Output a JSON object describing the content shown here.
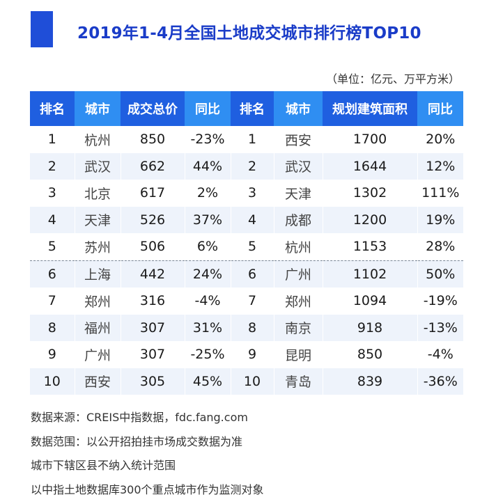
{
  "title": "2019年1-4月全国土地成交城市排行榜TOP10",
  "unit": "（单位：亿元、万平方米）",
  "chart_data": {
    "type": "table",
    "headers": [
      "排名",
      "城市",
      "成交总价",
      "同比",
      "排名",
      "城市",
      "规划建筑面积",
      "同比"
    ],
    "rows": [
      [
        "1",
        "杭州",
        "850",
        "-23%",
        "1",
        "西安",
        "1700",
        "20%"
      ],
      [
        "2",
        "武汉",
        "662",
        "44%",
        "2",
        "武汉",
        "1644",
        "12%"
      ],
      [
        "3",
        "北京",
        "617",
        "2%",
        "3",
        "天津",
        "1302",
        "111%"
      ],
      [
        "4",
        "天津",
        "526",
        "37%",
        "4",
        "成都",
        "1200",
        "19%"
      ],
      [
        "5",
        "苏州",
        "506",
        "6%",
        "5",
        "杭州",
        "1153",
        "28%"
      ],
      [
        "6",
        "上海",
        "442",
        "24%",
        "6",
        "广州",
        "1102",
        "50%"
      ],
      [
        "7",
        "郑州",
        "316",
        "-4%",
        "7",
        "郑州",
        "1094",
        "-19%"
      ],
      [
        "8",
        "福州",
        "307",
        "31%",
        "8",
        "南京",
        "918",
        "-13%"
      ],
      [
        "9",
        "广州",
        "307",
        "-25%",
        "9",
        "昆明",
        "850",
        "-4%"
      ],
      [
        "10",
        "西安",
        "305",
        "45%",
        "10",
        "青岛",
        "839",
        "-36%"
      ]
    ]
  },
  "notes": [
    "数据来源：CREIS中指数据，fdc.fang.com",
    "数据范围：以公开招拍挂市场成交数据为准",
    "城市下辖区县不纳入统计范围",
    "以中指土地数据库300个重点城市作为监测对象"
  ]
}
